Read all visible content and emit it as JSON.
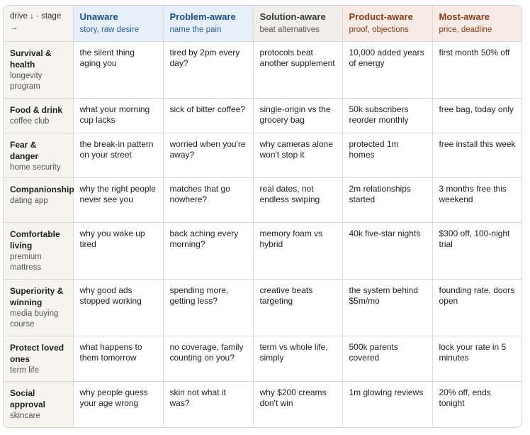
{
  "header": {
    "corner": "drive ↓ · stage →",
    "stages": [
      {
        "title": "Unaware",
        "sub": "story, raw desire"
      },
      {
        "title": "Problem-aware",
        "sub": "name the pain"
      },
      {
        "title": "Solution-aware",
        "sub": "beat alternatives"
      },
      {
        "title": "Product-aware",
        "sub": "proof, objections"
      },
      {
        "title": "Most-aware",
        "sub": "price, deadline"
      }
    ]
  },
  "rows": [
    {
      "drive": "Survival & health",
      "example": "longevity program",
      "cells": [
        "the silent thing aging you",
        "tired by 2pm every day?",
        "protocols beat another supplement",
        "10,000 added years of energy",
        "first month 50% off"
      ]
    },
    {
      "drive": "Food & drink",
      "example": "coffee club",
      "cells": [
        "what your morning cup lacks",
        "sick of bitter coffee?",
        "single-origin vs the grocery bag",
        "50k subscribers reorder monthly",
        "free bag, today only"
      ]
    },
    {
      "drive": "Fear & danger",
      "example": "home security",
      "cells": [
        "the break-in pattern on your street",
        "worried when you're away?",
        "why cameras alone won't stop it",
        "protected 1m homes",
        "free install this week"
      ]
    },
    {
      "drive": "Companionship",
      "example": "dating app",
      "cells": [
        "why the right people never see you",
        "matches that go nowhere?",
        "real dates, not endless swiping",
        "2m relationships started",
        "3 months free this weekend"
      ]
    },
    {
      "drive": "Comfortable living",
      "example": "premium mattress",
      "cells": [
        "why you wake up tired",
        "back aching every morning?",
        "memory foam vs hybrid",
        "40k five-star nights",
        "$300 off, 100-night trial"
      ]
    },
    {
      "drive": "Superiority & winning",
      "example": "media buying course",
      "cells": [
        "why good ads stopped working",
        "spending more, getting less?",
        "creative beats targeting",
        "the system behind $5m/mo",
        "founding rate, doors open"
      ]
    },
    {
      "drive": "Protect loved ones",
      "example": "term life",
      "cells": [
        "what happens to them tomorrow",
        "no coverage, family counting on you?",
        "term vs whole life, simply",
        "500k parents covered",
        "lock your rate in 5 minutes"
      ]
    },
    {
      "drive": "Social approval",
      "example": "skincare",
      "cells": [
        "why people guess your age wrong",
        "skin not what it was?",
        "why $200 creams don't win",
        "1m glowing reviews",
        "20% off, ends tonight"
      ]
    }
  ]
}
